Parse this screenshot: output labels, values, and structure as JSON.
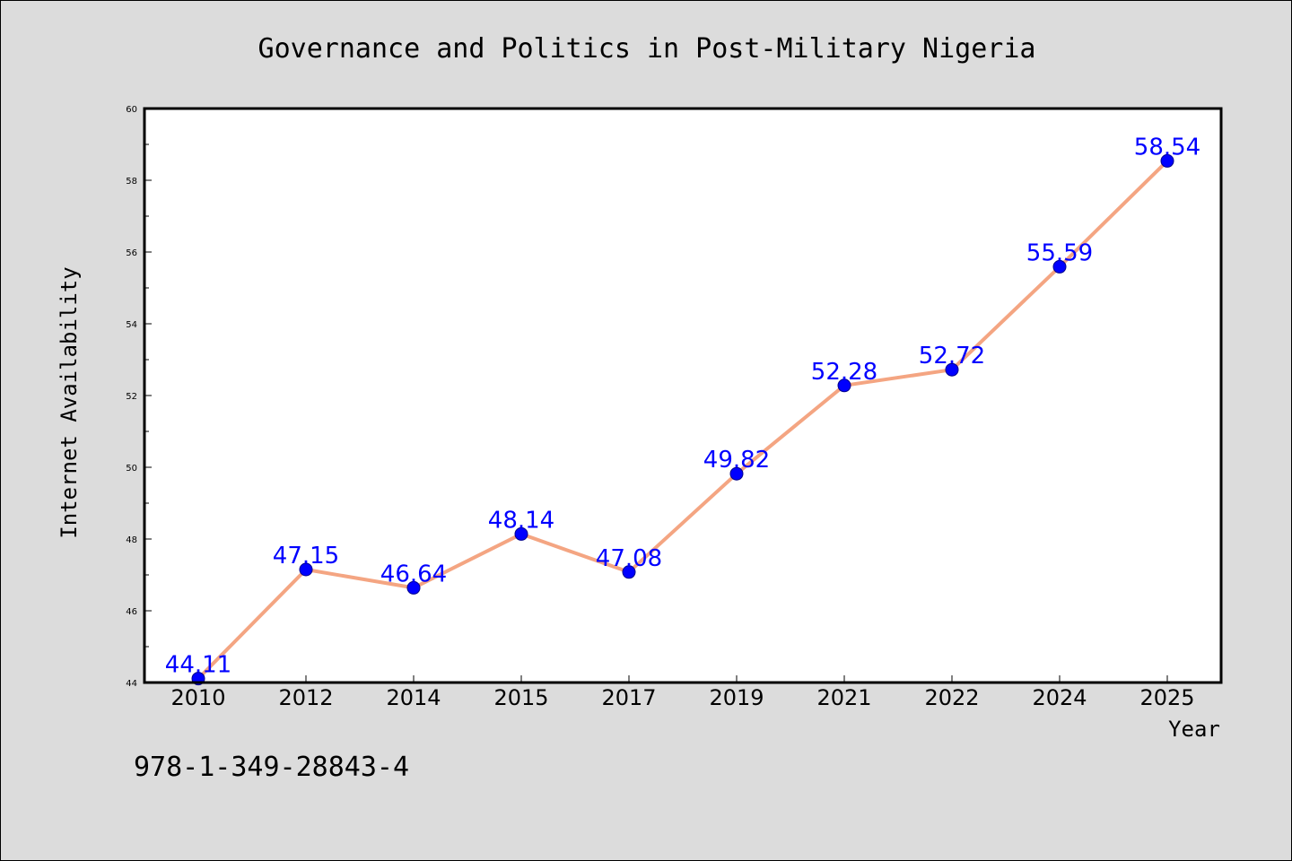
{
  "chart_data": {
    "type": "line",
    "title": "Governance and Politics in Post-Military Nigeria",
    "xlabel": "Year",
    "ylabel": "Internet Availability",
    "categories": [
      "2010",
      "2012",
      "2014",
      "2015",
      "2017",
      "2019",
      "2021",
      "2022",
      "2024",
      "2025"
    ],
    "series": [
      {
        "values": [
          44.11,
          47.15,
          46.64,
          48.14,
          47.08,
          49.82,
          52.28,
          52.72,
          55.59,
          58.54
        ],
        "labels": [
          "44.11",
          "47.15",
          "46.64",
          "48.14",
          "47.08",
          "49.82",
          "52.28",
          "52.72",
          "55.59",
          "58.54"
        ],
        "line_color": "#f4a582",
        "marker_color": "#0000ff"
      }
    ],
    "ylim": [
      44,
      60
    ],
    "y_ticks": [
      "44",
      "46",
      "48",
      "50",
      "52",
      "54",
      "56",
      "58",
      "60"
    ],
    "grid": false,
    "legend": "none",
    "label_color": "#0000ff",
    "plot_background": "#ffffff",
    "figure_background": "#dcdcdc"
  },
  "footer": {
    "isbn": "978-1-349-28843-4"
  }
}
